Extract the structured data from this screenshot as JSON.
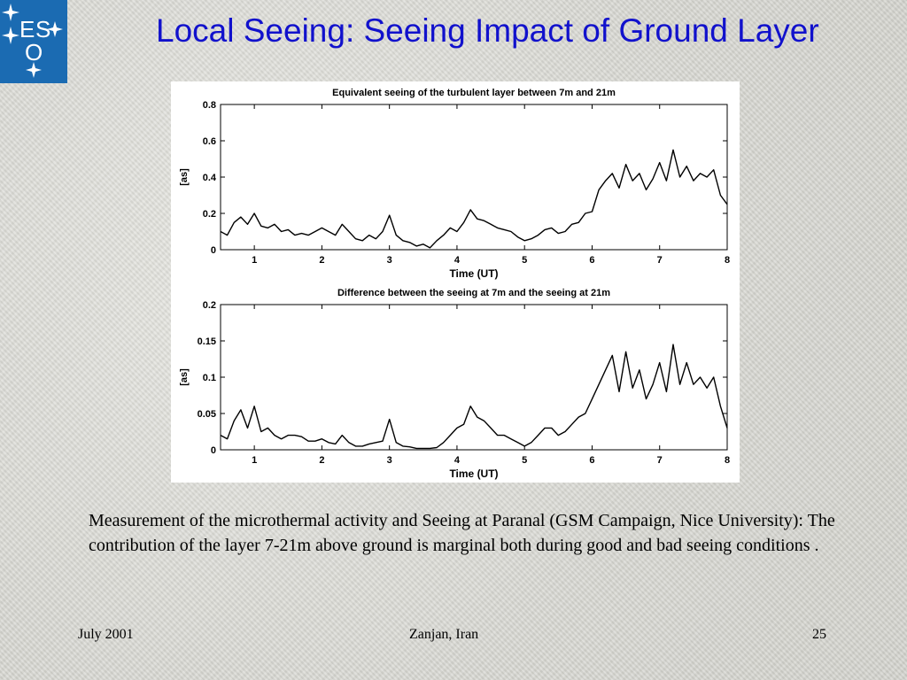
{
  "slide": {
    "title": "Local Seeing: Seeing Impact of Ground Layer",
    "caption": "Measurement of the microthermal activity and Seeing at Paranal (GSM Campaign, Nice University): The contribution of the layer 7-21m above ground is marginal both during good and bad seeing conditions .",
    "footer_left": "July 2001",
    "footer_center": "Zanjan, Iran",
    "footer_right": "25"
  },
  "logo": {
    "letters": [
      "E",
      "S",
      "O"
    ],
    "background": "#1b6bb2"
  },
  "colors": {
    "title": "#1111cc",
    "line": "#000000"
  },
  "chart_data": [
    {
      "type": "line",
      "title": "Equivalent seeing of the turbulent layer between 7m and 21m",
      "xlabel": "Time (UT)",
      "ylabel": "[as]",
      "xlim": [
        0.5,
        8
      ],
      "ylim": [
        0,
        0.8
      ],
      "xticks": [
        1,
        2,
        3,
        4,
        5,
        6,
        7,
        8
      ],
      "yticks": [
        0,
        0.2,
        0.4,
        0.6,
        0.8
      ],
      "ytick_labels": [
        "0",
        "0.2",
        "0.4",
        "0.6",
        "0.8"
      ],
      "grid": false,
      "series": [
        {
          "x": [
            0.5,
            0.6,
            0.7,
            0.8,
            0.9,
            1.0,
            1.1,
            1.2,
            1.3,
            1.4,
            1.5,
            1.6,
            1.7,
            1.8,
            1.9,
            2.0,
            2.1,
            2.2,
            2.3,
            2.4,
            2.5,
            2.6,
            2.7,
            2.8,
            2.9,
            3.0,
            3.1,
            3.2,
            3.3,
            3.4,
            3.5,
            3.6,
            3.7,
            3.8,
            3.9,
            4.0,
            4.1,
            4.2,
            4.3,
            4.4,
            4.5,
            4.6,
            4.7,
            4.8,
            4.9,
            5.0,
            5.1,
            5.2,
            5.3,
            5.4,
            5.5,
            5.6,
            5.7,
            5.8,
            5.9,
            6.0,
            6.1,
            6.2,
            6.3,
            6.4,
            6.5,
            6.6,
            6.7,
            6.8,
            6.9,
            7.0,
            7.1,
            7.2,
            7.3,
            7.4,
            7.5,
            7.6,
            7.7,
            7.8,
            7.9,
            8.0
          ],
          "y": [
            0.1,
            0.08,
            0.15,
            0.18,
            0.14,
            0.2,
            0.13,
            0.12,
            0.14,
            0.1,
            0.11,
            0.08,
            0.09,
            0.08,
            0.1,
            0.12,
            0.1,
            0.08,
            0.14,
            0.1,
            0.06,
            0.05,
            0.08,
            0.06,
            0.1,
            0.19,
            0.08,
            0.05,
            0.04,
            0.02,
            0.03,
            0.01,
            0.05,
            0.08,
            0.12,
            0.1,
            0.15,
            0.22,
            0.17,
            0.16,
            0.14,
            0.12,
            0.11,
            0.1,
            0.07,
            0.05,
            0.06,
            0.08,
            0.11,
            0.12,
            0.09,
            0.1,
            0.14,
            0.15,
            0.2,
            0.21,
            0.33,
            0.38,
            0.42,
            0.34,
            0.47,
            0.38,
            0.42,
            0.33,
            0.39,
            0.48,
            0.38,
            0.55,
            0.4,
            0.46,
            0.38,
            0.42,
            0.4,
            0.44,
            0.3,
            0.25
          ]
        }
      ]
    },
    {
      "type": "line",
      "title": "Difference between the seeing at 7m and the seeing at 21m",
      "xlabel": "Time (UT)",
      "ylabel": "[as]",
      "xlim": [
        0.5,
        8
      ],
      "ylim": [
        0,
        0.2
      ],
      "xticks": [
        1,
        2,
        3,
        4,
        5,
        6,
        7,
        8
      ],
      "yticks": [
        0,
        0.05,
        0.1,
        0.15,
        0.2
      ],
      "ytick_labels": [
        "0",
        "0.05",
        "0.1",
        "0.15",
        "0.2"
      ],
      "grid": false,
      "series": [
        {
          "x": [
            0.5,
            0.6,
            0.7,
            0.8,
            0.9,
            1.0,
            1.1,
            1.2,
            1.3,
            1.4,
            1.5,
            1.6,
            1.7,
            1.8,
            1.9,
            2.0,
            2.1,
            2.2,
            2.3,
            2.4,
            2.5,
            2.6,
            2.7,
            2.8,
            2.9,
            3.0,
            3.1,
            3.2,
            3.3,
            3.4,
            3.5,
            3.6,
            3.7,
            3.8,
            3.9,
            4.0,
            4.1,
            4.2,
            4.3,
            4.4,
            4.5,
            4.6,
            4.7,
            4.8,
            4.9,
            5.0,
            5.1,
            5.2,
            5.3,
            5.4,
            5.5,
            5.6,
            5.7,
            5.8,
            5.9,
            6.0,
            6.1,
            6.2,
            6.3,
            6.4,
            6.5,
            6.6,
            6.7,
            6.8,
            6.9,
            7.0,
            7.1,
            7.2,
            7.3,
            7.4,
            7.5,
            7.6,
            7.7,
            7.8,
            7.9,
            8.0
          ],
          "y": [
            0.02,
            0.015,
            0.04,
            0.055,
            0.03,
            0.06,
            0.025,
            0.03,
            0.02,
            0.015,
            0.02,
            0.02,
            0.018,
            0.012,
            0.012,
            0.015,
            0.01,
            0.008,
            0.02,
            0.01,
            0.005,
            0.005,
            0.008,
            0.01,
            0.012,
            0.042,
            0.01,
            0.005,
            0.004,
            0.002,
            0.002,
            0.002,
            0.003,
            0.01,
            0.02,
            0.03,
            0.035,
            0.06,
            0.045,
            0.04,
            0.03,
            0.02,
            0.02,
            0.015,
            0.01,
            0.005,
            0.01,
            0.02,
            0.03,
            0.03,
            0.02,
            0.025,
            0.035,
            0.045,
            0.05,
            0.07,
            0.09,
            0.11,
            0.13,
            0.08,
            0.135,
            0.085,
            0.11,
            0.07,
            0.09,
            0.12,
            0.08,
            0.145,
            0.09,
            0.12,
            0.09,
            0.1,
            0.085,
            0.1,
            0.06,
            0.03
          ]
        }
      ]
    }
  ]
}
